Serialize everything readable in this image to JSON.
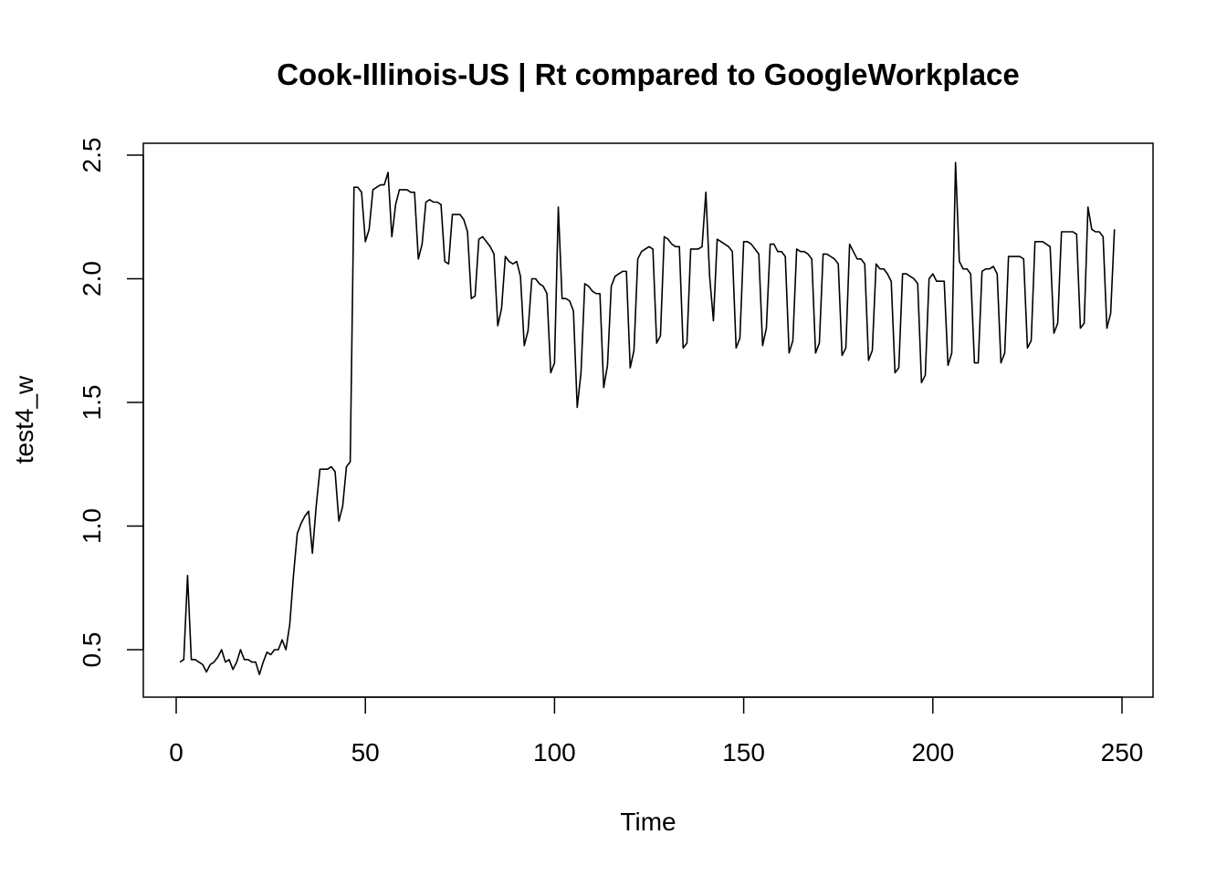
{
  "chart_data": {
    "type": "line",
    "title": "Cook-Illinois-US | Rt compared to GoogleWorkplace",
    "xlabel": "Time",
    "ylabel": "test4_w",
    "xlim": [
      0,
      250
    ],
    "ylim": [
      0.4,
      2.45
    ],
    "x_ticks": [
      0,
      50,
      100,
      150,
      200,
      250
    ],
    "y_ticks": [
      0.5,
      1.0,
      1.5,
      2.0,
      2.5
    ],
    "x_tick_labels": [
      "0",
      "50",
      "100",
      "150",
      "200",
      "250"
    ],
    "y_tick_labels": [
      "0.5",
      "1.0",
      "1.5",
      "2.0",
      "2.5"
    ],
    "grid": false,
    "legend": "none",
    "line_color": "#000000",
    "x": [
      1,
      2,
      3,
      4,
      5,
      6,
      7,
      8,
      9,
      10,
      11,
      12,
      13,
      14,
      15,
      16,
      17,
      18,
      19,
      20,
      21,
      22,
      23,
      24,
      25,
      26,
      27,
      28,
      29,
      30,
      31,
      32,
      33,
      34,
      35,
      36,
      37,
      38,
      39,
      40,
      41,
      42,
      43,
      44,
      45,
      46,
      47,
      48,
      49,
      50,
      51,
      52,
      53,
      54,
      55,
      56,
      57,
      58,
      59,
      60,
      61,
      62,
      63,
      64,
      65,
      66,
      67,
      68,
      69,
      70,
      71,
      72,
      73,
      74,
      75,
      76,
      77,
      78,
      79,
      80,
      81,
      82,
      83,
      84,
      85,
      86,
      87,
      88,
      89,
      90,
      91,
      92,
      93,
      94,
      95,
      96,
      97,
      98,
      99,
      100,
      101,
      102,
      103,
      104,
      105,
      106,
      107,
      108,
      109,
      110,
      111,
      112,
      113,
      114,
      115,
      116,
      117,
      118,
      119,
      120,
      121,
      122,
      123,
      124,
      125,
      126,
      127,
      128,
      129,
      130,
      131,
      132,
      133,
      134,
      135,
      136,
      137,
      138,
      139,
      140,
      141,
      142,
      143,
      144,
      145,
      146,
      147,
      148,
      149,
      150,
      151,
      152,
      153,
      154,
      155,
      156,
      157,
      158,
      159,
      160,
      161,
      162,
      163,
      164,
      165,
      166,
      167,
      168,
      169,
      170,
      171,
      172,
      173,
      174,
      175,
      176,
      177,
      178,
      179,
      180,
      181,
      182,
      183,
      184,
      185,
      186,
      187,
      188,
      189,
      190,
      191,
      192,
      193,
      194,
      195,
      196,
      197,
      198,
      199,
      200,
      201,
      202,
      203,
      204,
      205,
      206,
      207,
      208,
      209,
      210,
      211,
      212,
      213,
      214,
      215,
      216,
      217,
      218,
      219,
      220,
      221,
      222,
      223,
      224,
      225,
      226,
      227,
      228,
      229,
      230,
      231,
      232,
      233,
      234,
      235,
      236,
      237,
      238,
      239,
      240,
      241,
      242,
      243,
      244,
      245,
      246,
      247,
      248
    ],
    "y": [
      0.45,
      0.46,
      0.8,
      0.46,
      0.46,
      0.45,
      0.44,
      0.41,
      0.44,
      0.45,
      0.47,
      0.5,
      0.45,
      0.46,
      0.42,
      0.45,
      0.5,
      0.46,
      0.46,
      0.45,
      0.45,
      0.4,
      0.45,
      0.49,
      0.48,
      0.5,
      0.5,
      0.54,
      0.5,
      0.6,
      0.8,
      0.97,
      1.01,
      1.04,
      1.06,
      0.89,
      1.08,
      1.23,
      1.23,
      1.23,
      1.24,
      1.22,
      1.02,
      1.08,
      1.24,
      1.26,
      2.37,
      2.37,
      2.35,
      2.15,
      2.2,
      2.36,
      2.37,
      2.38,
      2.38,
      2.43,
      2.17,
      2.3,
      2.36,
      2.36,
      2.36,
      2.35,
      2.35,
      2.08,
      2.14,
      2.31,
      2.32,
      2.31,
      2.31,
      2.3,
      2.07,
      2.06,
      2.26,
      2.26,
      2.26,
      2.24,
      2.19,
      1.92,
      1.93,
      2.16,
      2.17,
      2.15,
      2.13,
      2.1,
      1.81,
      1.88,
      2.09,
      2.07,
      2.06,
      2.07,
      2.01,
      1.73,
      1.79,
      2.0,
      2.0,
      1.98,
      1.97,
      1.94,
      1.62,
      1.66,
      2.29,
      1.92,
      1.92,
      1.91,
      1.87,
      1.48,
      1.62,
      1.98,
      1.97,
      1.95,
      1.94,
      1.94,
      1.56,
      1.65,
      1.97,
      2.01,
      2.02,
      2.03,
      2.03,
      1.64,
      1.71,
      2.08,
      2.11,
      2.12,
      2.13,
      2.12,
      1.74,
      1.77,
      2.17,
      2.16,
      2.14,
      2.13,
      2.13,
      1.72,
      1.74,
      2.12,
      2.12,
      2.12,
      2.13,
      2.35,
      2.01,
      1.83,
      2.16,
      2.15,
      2.14,
      2.13,
      2.11,
      1.72,
      1.76,
      2.15,
      2.15,
      2.14,
      2.12,
      2.1,
      1.73,
      1.8,
      2.14,
      2.14,
      2.11,
      2.11,
      2.09,
      1.7,
      1.75,
      2.12,
      2.11,
      2.11,
      2.1,
      2.08,
      1.7,
      1.74,
      2.1,
      2.1,
      2.09,
      2.08,
      2.06,
      1.69,
      1.72,
      2.14,
      2.11,
      2.08,
      2.08,
      2.06,
      1.67,
      1.71,
      2.06,
      2.04,
      2.04,
      2.02,
      1.99,
      1.62,
      1.64,
      2.02,
      2.02,
      2.01,
      2.0,
      1.98,
      1.58,
      1.61,
      2.0,
      2.02,
      1.99,
      1.99,
      1.99,
      1.65,
      1.7,
      2.47,
      2.07,
      2.04,
      2.04,
      2.02,
      1.66,
      1.66,
      2.03,
      2.04,
      2.04,
      2.05,
      2.02,
      1.66,
      1.7,
      2.09,
      2.09,
      2.09,
      2.09,
      2.08,
      1.72,
      1.75,
      2.15,
      2.15,
      2.15,
      2.14,
      2.13,
      1.78,
      1.82,
      2.19,
      2.19,
      2.19,
      2.19,
      2.18,
      1.8,
      1.82,
      2.29,
      2.2,
      2.19,
      2.19,
      2.17,
      1.8,
      1.86,
      2.2
    ]
  }
}
